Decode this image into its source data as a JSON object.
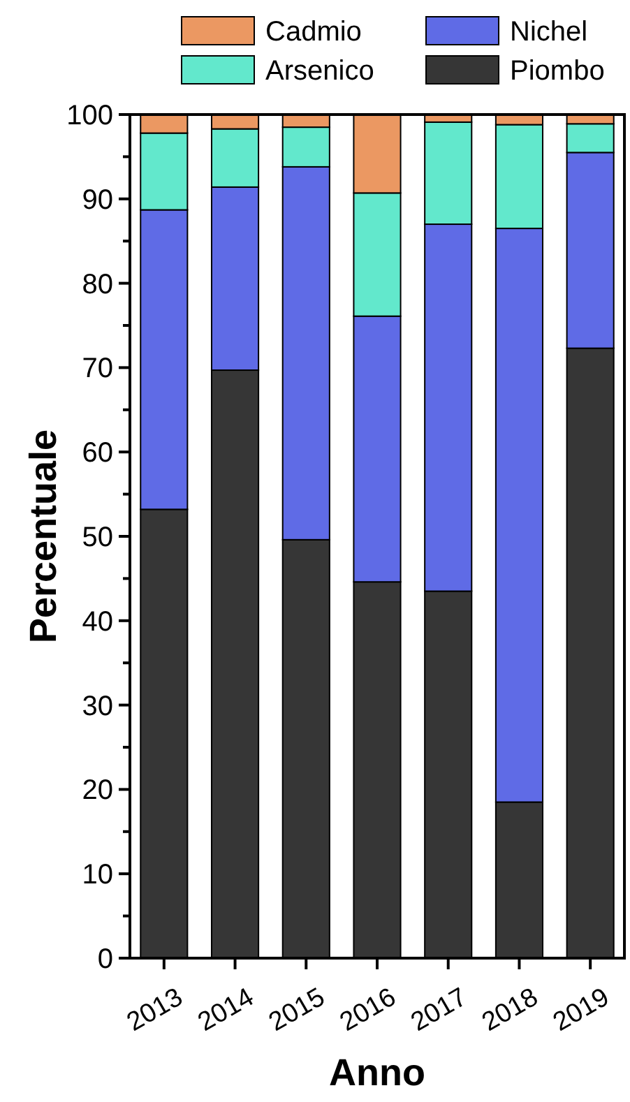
{
  "chart_data": {
    "type": "bar",
    "stacked": true,
    "xlabel": "Anno",
    "ylabel": "Percentuale",
    "categories": [
      "2013",
      "2014",
      "2015",
      "2016",
      "2017",
      "2018",
      "2019"
    ],
    "series": [
      {
        "name": "Piombo",
        "color": "#363636",
        "values": [
          53.2,
          69.7,
          49.6,
          44.6,
          43.5,
          18.5,
          72.3
        ]
      },
      {
        "name": "Nichel",
        "color": "#5f6be6",
        "values": [
          35.5,
          21.7,
          44.2,
          31.5,
          43.5,
          68.0,
          23.2
        ]
      },
      {
        "name": "Arsenico",
        "color": "#62e8cc",
        "values": [
          9.1,
          6.9,
          4.7,
          14.6,
          12.1,
          12.3,
          3.4
        ]
      },
      {
        "name": "Cadmio",
        "color": "#eb9862",
        "values": [
          2.2,
          1.7,
          1.5,
          9.3,
          0.9,
          1.2,
          1.1
        ]
      }
    ],
    "ylim": [
      0,
      100
    ],
    "yticks": [
      0,
      {
        "value": 5,
        "label": null
      },
      10,
      {
        "value": 15,
        "label": null
      },
      20,
      {
        "value": 25,
        "label": null
      },
      30,
      {
        "value": 35,
        "label": null
      },
      40,
      {
        "value": 45,
        "label": null
      },
      50,
      {
        "value": 55,
        "label": null
      },
      60,
      {
        "value": 65,
        "label": null
      },
      70,
      {
        "value": 75,
        "label": null
      },
      80,
      {
        "value": 85,
        "label": null
      },
      90,
      {
        "value": 95,
        "label": null
      },
      100
    ],
    "grid": false,
    "legend": "top"
  }
}
